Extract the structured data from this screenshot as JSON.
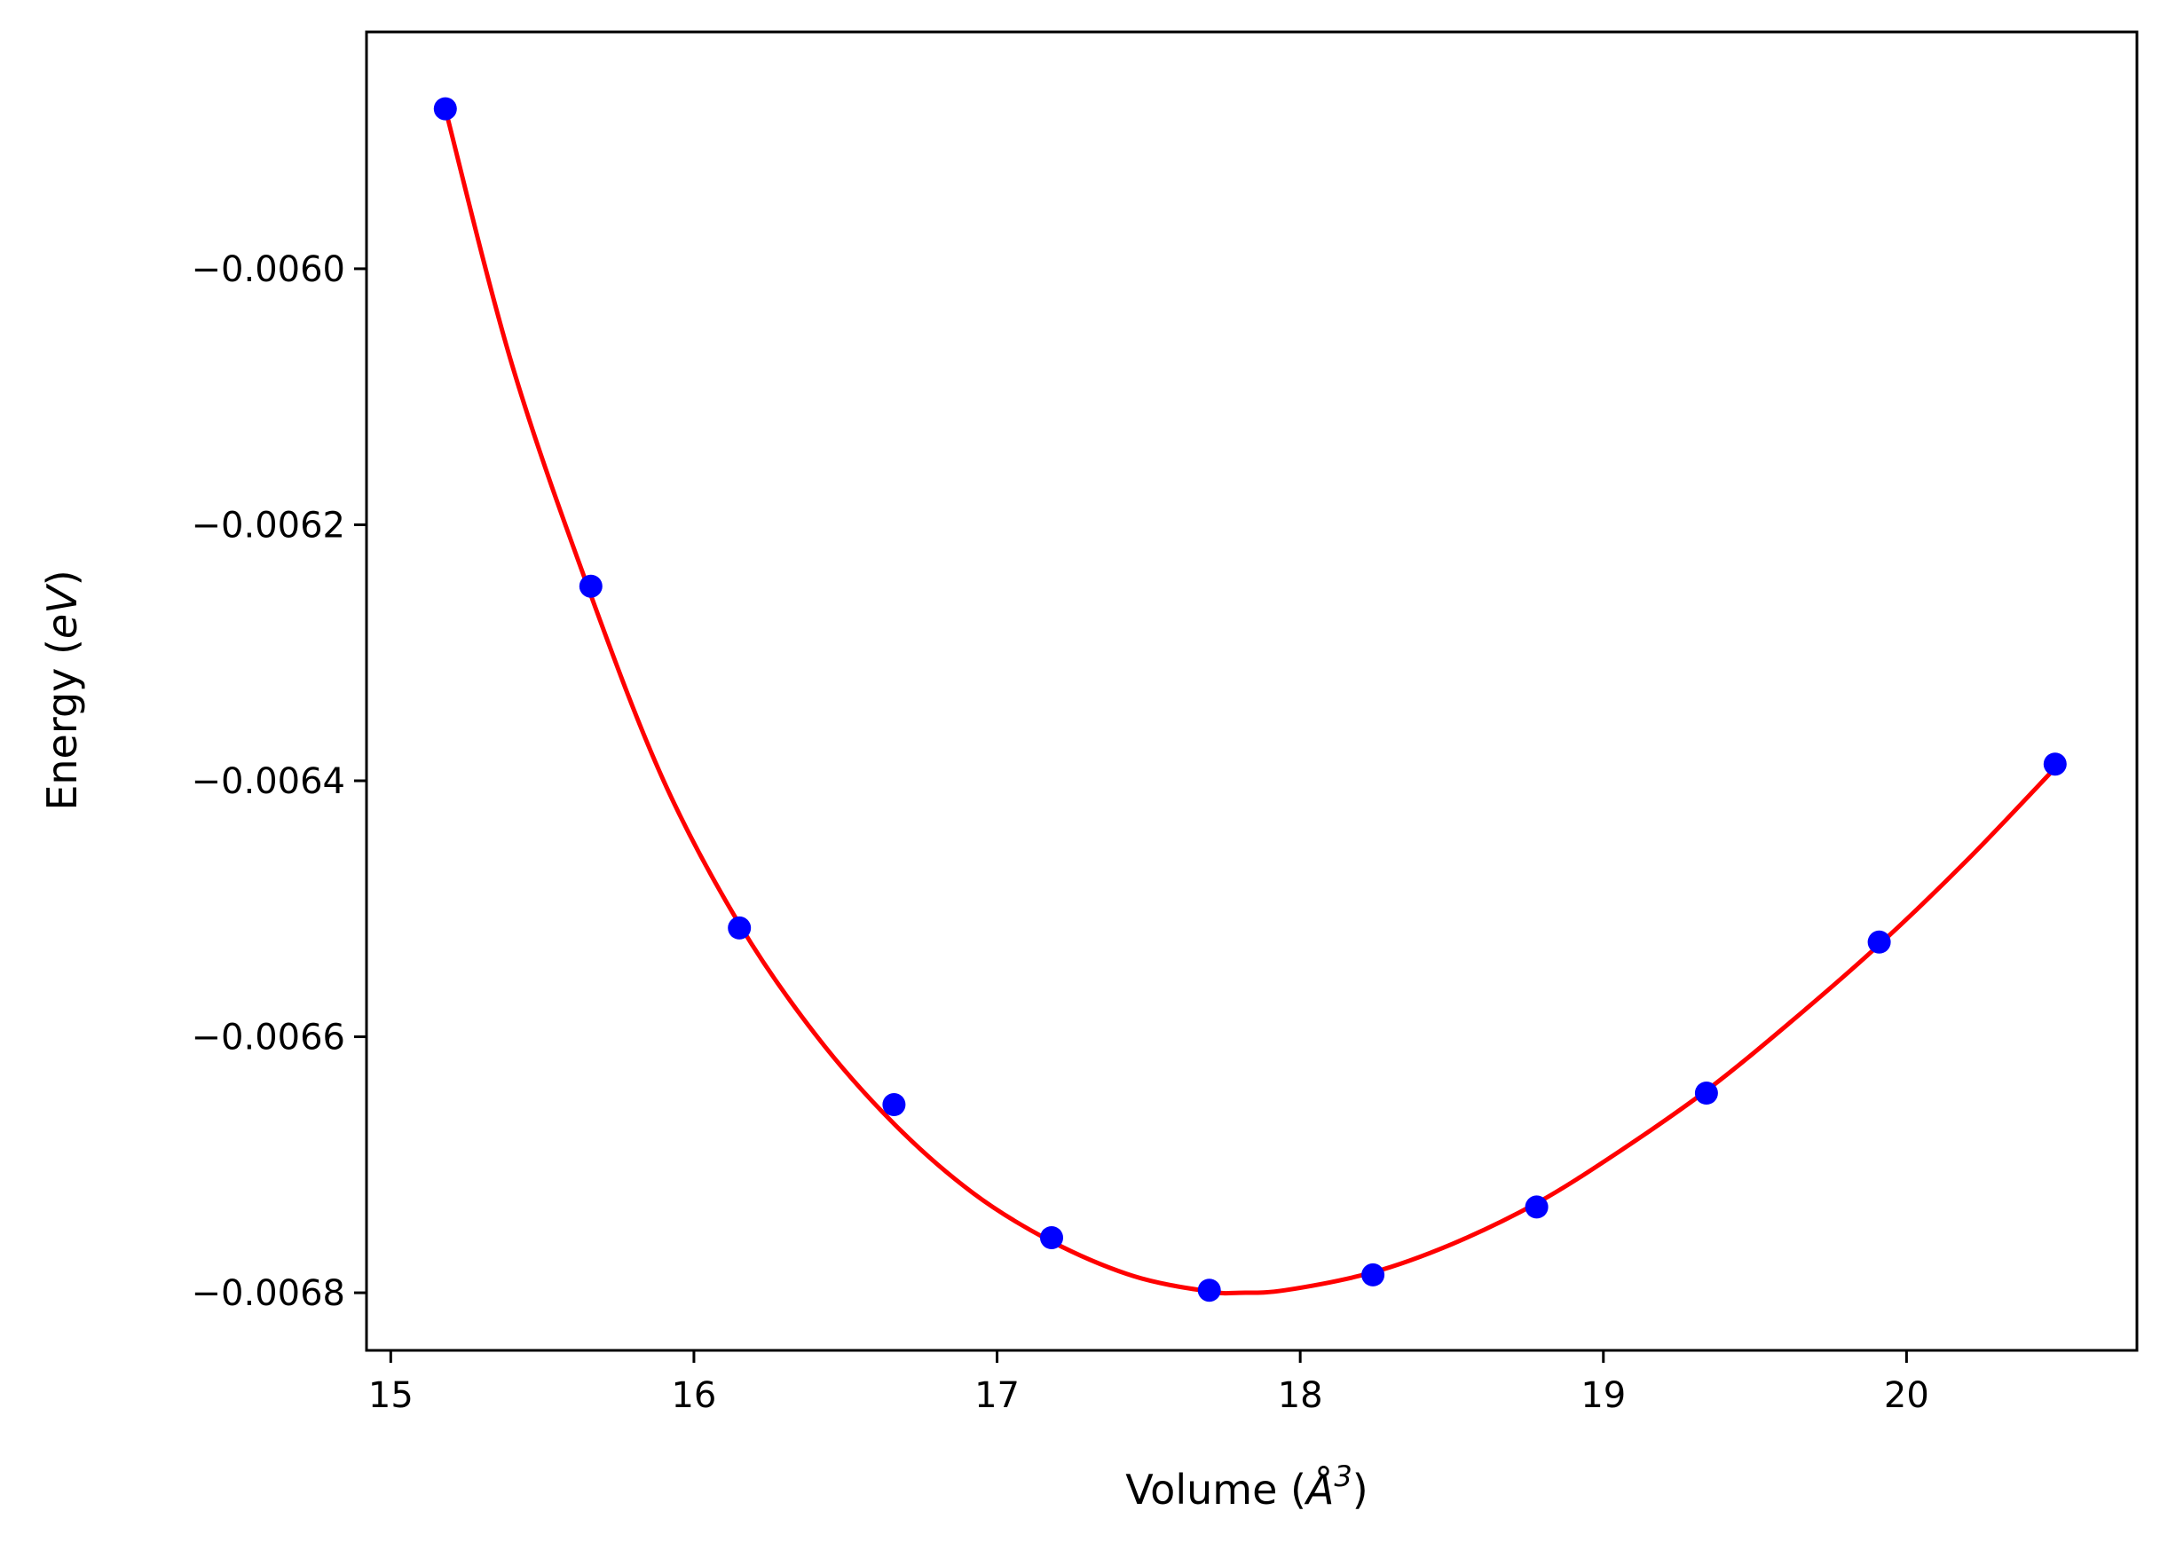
{
  "chart_data": {
    "type": "scatter",
    "title": "",
    "xlabel_prefix": "Volume (",
    "xlabel_symbol": "Å",
    "xlabel_exponent": "3",
    "xlabel_suffix": ")",
    "ylabel_prefix": "Energy (",
    "ylabel_unit": "eV",
    "ylabel_suffix": ")",
    "xlim": [
      14.92,
      20.76
    ],
    "ylim": [
      -0.006845,
      -0.005815
    ],
    "xticks": [
      15,
      16,
      17,
      18,
      19,
      20
    ],
    "xtick_labels": [
      "15",
      "16",
      "17",
      "18",
      "19",
      "20"
    ],
    "yticks": [
      -0.0068,
      -0.0066,
      -0.0064,
      -0.0062,
      -0.006
    ],
    "ytick_labels": [
      "−0.0068",
      "−0.0066",
      "−0.0064",
      "−0.0062",
      "−0.0060"
    ],
    "grid": false,
    "legend": "none",
    "series": [
      {
        "kind": "points",
        "color": "#0000ff",
        "x": [
          15.18,
          15.66,
          16.15,
          16.66,
          17.18,
          17.7,
          18.24,
          18.78,
          19.34,
          19.91,
          20.49
        ],
        "y": [
          -0.005875,
          -0.006248,
          -0.006515,
          -0.006653,
          -0.006757,
          -0.006798,
          -0.006786,
          -0.006733,
          -0.006644,
          -0.006526,
          -0.006387
        ]
      },
      {
        "kind": "fit-curve",
        "color": "#ff0000",
        "x": [
          15.18,
          15.4,
          15.66,
          15.9,
          16.15,
          16.4,
          16.66,
          16.92,
          17.18,
          17.45,
          17.7,
          17.8,
          17.95,
          18.24,
          18.5,
          18.78,
          19.05,
          19.34,
          19.62,
          19.91,
          20.2,
          20.49
        ],
        "y": [
          -0.005875,
          -0.006075,
          -0.006255,
          -0.0064,
          -0.006512,
          -0.006598,
          -0.006668,
          -0.006722,
          -0.00676,
          -0.006787,
          -0.006799,
          -0.0068,
          -0.006798,
          -0.006784,
          -0.006762,
          -0.00673,
          -0.00669,
          -0.006642,
          -0.006588,
          -0.006528,
          -0.006462,
          -0.00639
        ]
      }
    ]
  }
}
